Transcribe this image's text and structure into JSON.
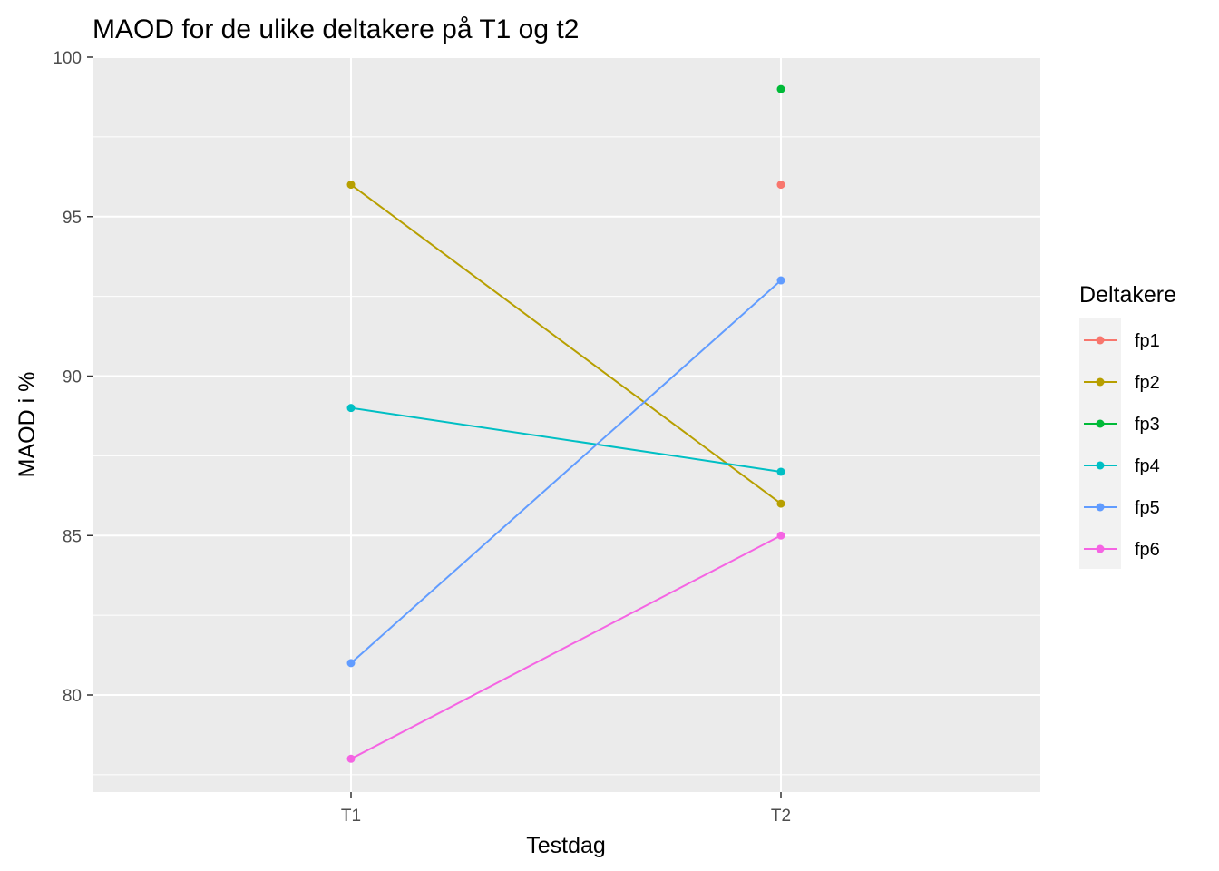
{
  "chart_data": {
    "type": "line",
    "title": "MAOD for de ulike deltakere på T1 og t2",
    "xlabel": "Testdag",
    "ylabel": "MAOD i %",
    "categories": [
      "T1",
      "T2"
    ],
    "ylim": [
      77,
      100
    ],
    "yticks": [
      "80",
      "85",
      "90",
      "95",
      "100"
    ],
    "grid": true,
    "legend": {
      "title": "Deltakere",
      "position": "right"
    },
    "series": [
      {
        "name": "fp1",
        "color": "#F8766D",
        "values": [
          null,
          96
        ]
      },
      {
        "name": "fp2",
        "color": "#B79F00",
        "values": [
          96,
          86
        ]
      },
      {
        "name": "fp3",
        "color": "#00BA38",
        "values": [
          null,
          99
        ]
      },
      {
        "name": "fp4",
        "color": "#00BFC4",
        "values": [
          89,
          87
        ]
      },
      {
        "name": "fp5",
        "color": "#619CFF",
        "values": [
          81,
          93
        ]
      },
      {
        "name": "fp6",
        "color": "#F564E3",
        "values": [
          78,
          85
        ]
      }
    ]
  }
}
